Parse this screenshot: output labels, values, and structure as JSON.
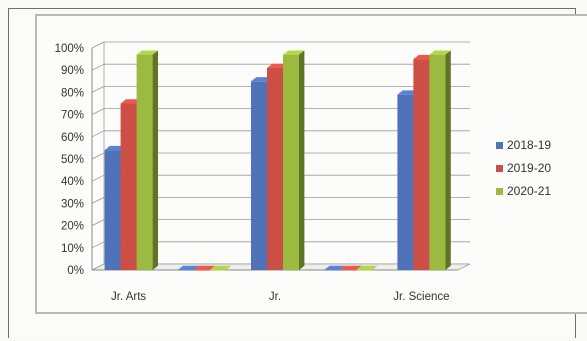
{
  "chart_data": {
    "type": "bar",
    "categories": [
      "Jr. Arts",
      "",
      "Jr.",
      "",
      "Jr. Science"
    ],
    "series": [
      {
        "name": "2018-19",
        "values": [
          54,
          0,
          85,
          0,
          79
        ]
      },
      {
        "name": "2019-20",
        "values": [
          75,
          0,
          91,
          0,
          95
        ]
      },
      {
        "name": "2020-21",
        "values": [
          97,
          0,
          97,
          0,
          97
        ]
      }
    ],
    "ylim": [
      0,
      100
    ],
    "yticks": [
      "0%",
      "10%",
      "20%",
      "30%",
      "40%",
      "50%",
      "60%",
      "70%",
      "80%",
      "90%",
      "100%"
    ],
    "grid": true,
    "legend": "right",
    "colors": [
      "#4f72b8",
      "#cd4e45",
      "#9bbb40"
    ]
  }
}
